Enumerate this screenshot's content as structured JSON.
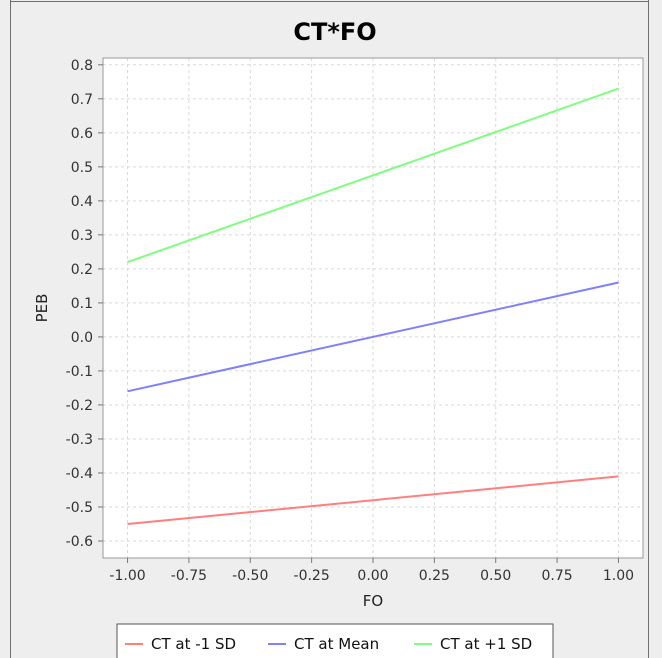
{
  "chart_data": {
    "type": "line",
    "title": "CT*FO",
    "xlabel": "FO",
    "ylabel": "PEB",
    "x": [
      -1.0,
      1.0
    ],
    "xlim": [
      -1.1,
      1.1
    ],
    "ylim": [
      -0.65,
      0.82
    ],
    "x_ticks": [
      "-1.00",
      "-0.75",
      "-0.50",
      "-0.25",
      "0.00",
      "0.25",
      "0.50",
      "0.75",
      "1.00"
    ],
    "x_tick_values": [
      -1.0,
      -0.75,
      -0.5,
      -0.25,
      0.0,
      0.25,
      0.5,
      0.75,
      1.0
    ],
    "y_ticks": [
      "0.8",
      "0.7",
      "0.6",
      "0.5",
      "0.4",
      "0.3",
      "0.2",
      "0.1",
      "0.0",
      "-0.1",
      "-0.2",
      "-0.3",
      "-0.4",
      "-0.5",
      "-0.6"
    ],
    "y_tick_values": [
      0.8,
      0.7,
      0.6,
      0.5,
      0.4,
      0.3,
      0.2,
      0.1,
      0.0,
      -0.1,
      -0.2,
      -0.3,
      -0.4,
      -0.5,
      -0.6
    ],
    "grid": true,
    "legend_position": "bottom",
    "series": [
      {
        "name": "CT at -1 SD",
        "color": "#ff7f7f",
        "values": [
          -0.55,
          -0.41
        ]
      },
      {
        "name": "CT at Mean",
        "color": "#7f7fff",
        "values": [
          -0.16,
          0.16
        ]
      },
      {
        "name": "CT at +1 SD",
        "color": "#7fff7f",
        "values": [
          0.22,
          0.73
        ]
      }
    ]
  }
}
